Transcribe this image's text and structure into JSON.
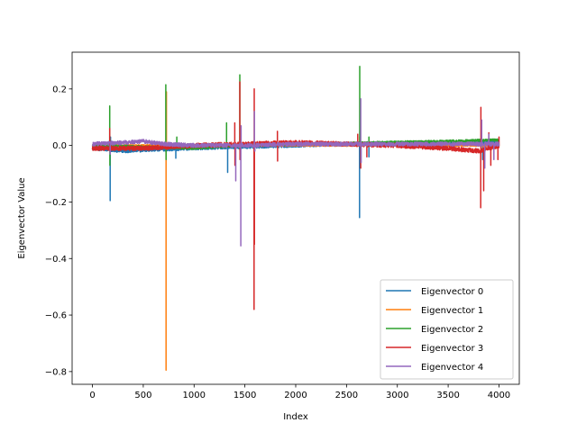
{
  "chart_data": {
    "type": "line",
    "title": "",
    "xlabel": "Index",
    "ylabel": "Eigenvector Value",
    "xlim": [
      -200,
      4200
    ],
    "ylim": [
      -0.845,
      0.33
    ],
    "grid": false,
    "legend_position": "lower-right",
    "x_ticks": [
      0,
      500,
      1000,
      1500,
      2000,
      2500,
      3000,
      3500,
      4000
    ],
    "x_tick_labels": [
      "0",
      "500",
      "1000",
      "1500",
      "2000",
      "2500",
      "3000",
      "3500",
      "4000"
    ],
    "y_ticks": [
      -0.8,
      -0.6,
      -0.4,
      -0.2,
      0.0,
      0.2
    ],
    "y_tick_labels": [
      "−0.8",
      "−0.6",
      "−0.4",
      "−0.2",
      "0.0",
      "0.2"
    ],
    "n_points": 4000,
    "series": [
      {
        "name": "Eigenvector 0",
        "color": "#1f77b4",
        "baseline": [
          [
            0,
            -0.01
          ],
          [
            300,
            -0.02
          ],
          [
            600,
            -0.015
          ],
          [
            1000,
            -0.01
          ],
          [
            1500,
            -0.005
          ],
          [
            2000,
            0.0
          ],
          [
            2500,
            0.005
          ],
          [
            3000,
            0.008
          ],
          [
            3500,
            0.01
          ],
          [
            4000,
            0.01
          ]
        ],
        "noise": 0.006,
        "spikes": [
          [
            175,
            -0.195
          ],
          [
            178,
            0.03
          ],
          [
            820,
            -0.045
          ],
          [
            1330,
            -0.095
          ],
          [
            2628,
            -0.255
          ],
          [
            2632,
            0.05
          ],
          [
            2720,
            -0.04
          ],
          [
            3840,
            -0.05
          ]
        ]
      },
      {
        "name": "Eigenvector 1",
        "color": "#ff7f0e",
        "baseline": [
          [
            0,
            0.0
          ],
          [
            1000,
            0.0
          ],
          [
            2000,
            0.0
          ],
          [
            3000,
            0.0
          ],
          [
            4000,
            0.0
          ]
        ],
        "noise": 0.003,
        "spikes": [
          [
            725,
            -0.795
          ],
          [
            728,
            0.19
          ],
          [
            1460,
            0.02
          ],
          [
            2630,
            0.03
          ]
        ]
      },
      {
        "name": "Eigenvector 2",
        "color": "#2ca02c",
        "baseline": [
          [
            0,
            0.0
          ],
          [
            500,
            -0.005
          ],
          [
            1000,
            -0.01
          ],
          [
            1500,
            0.0
          ],
          [
            2000,
            0.005
          ],
          [
            2500,
            0.008
          ],
          [
            3000,
            0.012
          ],
          [
            3500,
            0.015
          ],
          [
            4000,
            0.02
          ]
        ],
        "noise": 0.004,
        "spikes": [
          [
            170,
            0.14
          ],
          [
            172,
            -0.07
          ],
          [
            722,
            0.215
          ],
          [
            725,
            -0.05
          ],
          [
            830,
            0.03
          ],
          [
            1320,
            0.08
          ],
          [
            1450,
            0.25
          ],
          [
            1452,
            -0.02
          ],
          [
            2630,
            0.28
          ],
          [
            2634,
            0.12
          ],
          [
            2720,
            0.03
          ]
        ]
      },
      {
        "name": "Eigenvector 3",
        "color": "#d62728",
        "baseline": [
          [
            0,
            -0.01
          ],
          [
            500,
            -0.01
          ],
          [
            1000,
            0.0
          ],
          [
            1500,
            0.005
          ],
          [
            2000,
            0.01
          ],
          [
            2500,
            0.005
          ],
          [
            3000,
            0.0
          ],
          [
            3500,
            -0.01
          ],
          [
            3800,
            -0.02
          ],
          [
            4000,
            0.0
          ]
        ],
        "noise": 0.008,
        "spikes": [
          [
            170,
            0.06
          ],
          [
            1400,
            0.08
          ],
          [
            1402,
            -0.07
          ],
          [
            1450,
            0.225
          ],
          [
            1453,
            -0.05
          ],
          [
            1590,
            -0.58
          ],
          [
            1592,
            0.2
          ],
          [
            1595,
            -0.35
          ],
          [
            1820,
            0.05
          ],
          [
            1822,
            -0.055
          ],
          [
            2610,
            0.04
          ],
          [
            2640,
            -0.08
          ],
          [
            2700,
            -0.04
          ],
          [
            3820,
            -0.22
          ],
          [
            3823,
            0.135
          ],
          [
            3850,
            -0.16
          ],
          [
            3900,
            0.045
          ],
          [
            3920,
            -0.07
          ],
          [
            3990,
            -0.05
          ],
          [
            4000,
            0.03
          ]
        ]
      },
      {
        "name": "Eigenvector 4",
        "color": "#9467bd",
        "baseline": [
          [
            0,
            0.005
          ],
          [
            300,
            0.01
          ],
          [
            500,
            0.015
          ],
          [
            700,
            0.005
          ],
          [
            1000,
            0.0
          ],
          [
            1500,
            0.0
          ],
          [
            2000,
            0.005
          ],
          [
            2500,
            0.005
          ],
          [
            3000,
            0.005
          ],
          [
            3500,
            0.005
          ],
          [
            4000,
            0.005
          ]
        ],
        "noise": 0.007,
        "spikes": [
          [
            175,
            -0.03
          ],
          [
            1410,
            -0.125
          ],
          [
            1460,
            -0.355
          ],
          [
            1463,
            0.07
          ],
          [
            1595,
            0.12
          ],
          [
            1598,
            -0.02
          ],
          [
            2640,
            0.165
          ],
          [
            2644,
            -0.06
          ],
          [
            3830,
            0.09
          ],
          [
            3860,
            -0.08
          ],
          [
            3900,
            0.04
          ],
          [
            3950,
            -0.05
          ]
        ]
      }
    ]
  }
}
